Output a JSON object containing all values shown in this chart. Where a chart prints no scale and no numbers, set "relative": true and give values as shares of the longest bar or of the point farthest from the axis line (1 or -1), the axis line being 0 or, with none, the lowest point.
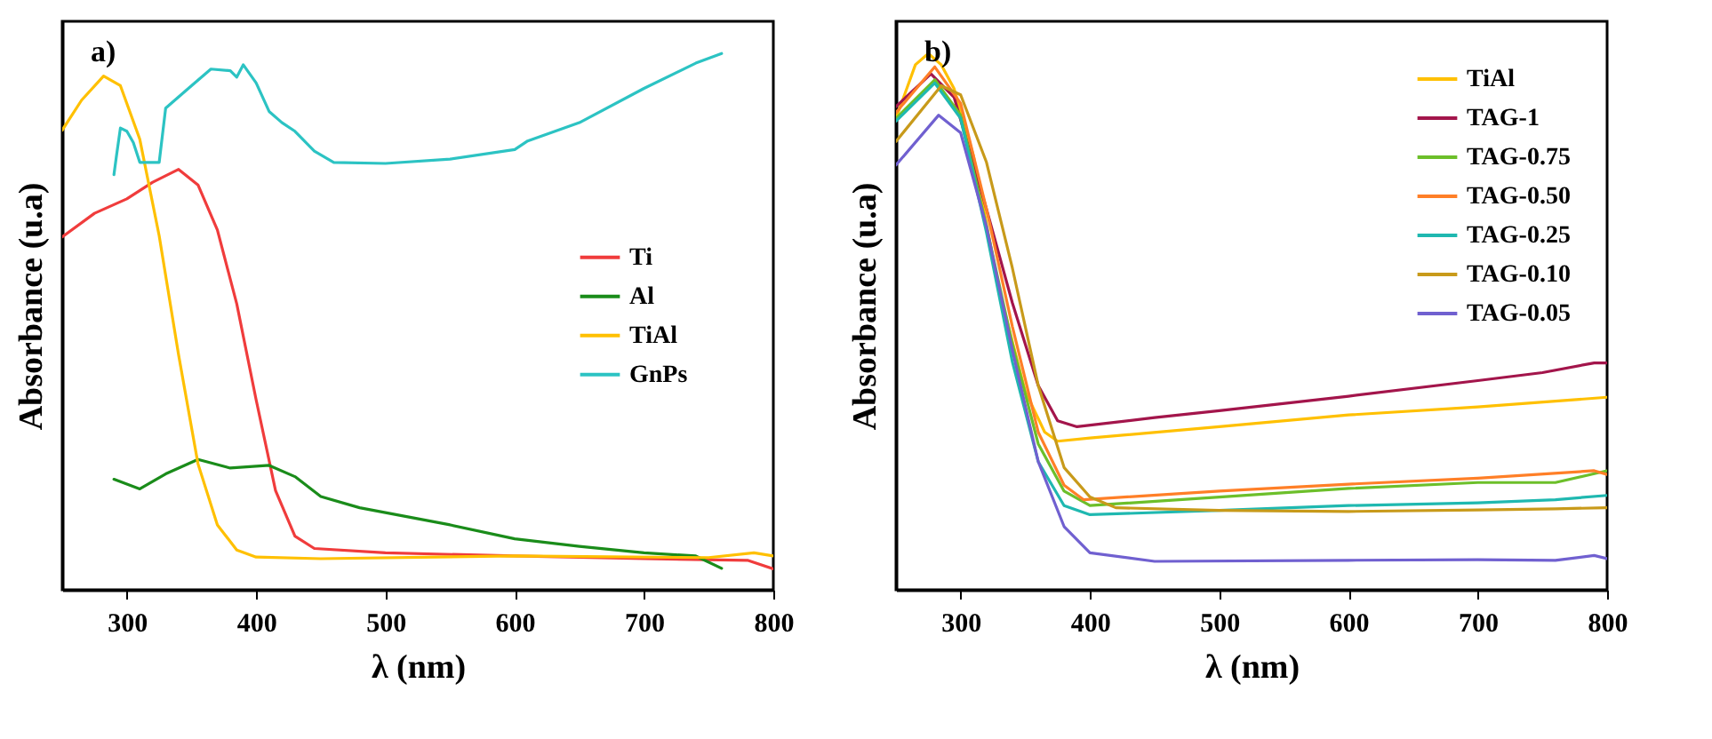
{
  "chart_data": [
    {
      "type": "line",
      "relative": true,
      "xlabel": "λ (nm)",
      "ylabel": "Absorbance (u.a)",
      "annotations": [
        "a)"
      ],
      "xlim": [
        250,
        800
      ],
      "xticks": [
        300,
        400,
        500,
        600,
        700,
        800
      ],
      "legend": "right",
      "grid": false,
      "line_style": "solid",
      "marker": "none",
      "series": [
        {
          "name": "Ti",
          "color": "#f03c3c",
          "x": [
            250,
            275,
            300,
            320,
            340,
            355,
            370,
            385,
            400,
            415,
            430,
            445,
            500,
            600,
            700,
            780,
            800
          ],
          "values": [
            0.658,
            0.702,
            0.729,
            0.76,
            0.784,
            0.755,
            0.671,
            0.533,
            0.354,
            0.185,
            0.1,
            0.077,
            0.069,
            0.063,
            0.058,
            0.055,
            0.039
          ]
        },
        {
          "name": "Al",
          "color": "#1a8c1a",
          "x": [
            290,
            310,
            330,
            355,
            380,
            410,
            430,
            450,
            480,
            550,
            600,
            650,
            700,
            740,
            760
          ],
          "values": [
            0.206,
            0.188,
            0.216,
            0.243,
            0.227,
            0.232,
            0.211,
            0.174,
            0.153,
            0.121,
            0.095,
            0.081,
            0.069,
            0.063,
            0.04
          ]
        },
        {
          "name": "TiAl",
          "color": "#ffc000",
          "x": [
            250,
            265,
            282,
            295,
            310,
            325,
            340,
            355,
            370,
            385,
            400,
            450,
            600,
            750,
            785,
            800
          ],
          "values": [
            0.857,
            0.913,
            0.958,
            0.94,
            0.84,
            0.66,
            0.438,
            0.235,
            0.121,
            0.074,
            0.061,
            0.058,
            0.063,
            0.06,
            0.069,
            0.063
          ]
        },
        {
          "name": "GnPs",
          "color": "#2cc3c3",
          "x": [
            290,
            292,
            295,
            300,
            305,
            310,
            325,
            330,
            350,
            365,
            380,
            385,
            390,
            400,
            410,
            420,
            430,
            445,
            460,
            500,
            550,
            600,
            610,
            650,
            700,
            740,
            760
          ],
          "values": [
            0.774,
            0.81,
            0.861,
            0.855,
            0.834,
            0.797,
            0.797,
            0.898,
            0.94,
            0.971,
            0.968,
            0.956,
            0.979,
            0.945,
            0.892,
            0.871,
            0.855,
            0.818,
            0.797,
            0.795,
            0.803,
            0.821,
            0.837,
            0.871,
            0.935,
            0.982,
            1.0
          ]
        }
      ]
    },
    {
      "type": "line",
      "relative": true,
      "xlabel": "λ (nm)",
      "ylabel": "Absorbance (u.a)",
      "annotations": [
        "b)"
      ],
      "xlim": [
        250,
        800
      ],
      "xticks": [
        300,
        400,
        500,
        600,
        700,
        800
      ],
      "legend": "top right",
      "grid": false,
      "line_style": "solid",
      "marker": "none",
      "series": [
        {
          "name": "TiAl",
          "color": "#ffc000",
          "x": [
            250,
            265,
            275,
            285,
            295,
            310,
            330,
            350,
            365,
            375,
            400,
            500,
            600,
            700,
            800
          ],
          "values": [
            0.879,
            0.979,
            1.0,
            0.979,
            0.934,
            0.808,
            0.556,
            0.37,
            0.294,
            0.277,
            0.283,
            0.304,
            0.326,
            0.341,
            0.359
          ]
        },
        {
          "name": "TAG-1",
          "color": "#a3154b",
          "x": [
            250,
            277,
            295,
            320,
            340,
            360,
            375,
            390,
            450,
            500,
            600,
            700,
            750,
            790,
            800
          ],
          "values": [
            0.901,
            0.962,
            0.918,
            0.71,
            0.535,
            0.381,
            0.315,
            0.304,
            0.321,
            0.334,
            0.361,
            0.39,
            0.405,
            0.423,
            0.423
          ]
        },
        {
          "name": "TAG-0.75",
          "color": "#6cbf2a",
          "x": [
            250,
            280,
            300,
            320,
            340,
            360,
            380,
            400,
            500,
            600,
            700,
            760,
            800
          ],
          "values": [
            0.879,
            0.951,
            0.885,
            0.677,
            0.458,
            0.272,
            0.184,
            0.157,
            0.173,
            0.189,
            0.2,
            0.2,
            0.222
          ]
        },
        {
          "name": "TAG-0.50",
          "color": "#ff7f27",
          "x": [
            250,
            280,
            300,
            320,
            340,
            360,
            380,
            395,
            500,
            600,
            700,
            790,
            800
          ],
          "values": [
            0.89,
            0.975,
            0.907,
            0.71,
            0.491,
            0.294,
            0.195,
            0.168,
            0.184,
            0.197,
            0.208,
            0.222,
            0.215
          ]
        },
        {
          "name": "TAG-0.25",
          "color": "#1fb8b0",
          "x": [
            250,
            280,
            300,
            320,
            340,
            360,
            380,
            400,
            500,
            600,
            700,
            760,
            800
          ],
          "values": [
            0.874,
            0.945,
            0.879,
            0.666,
            0.425,
            0.239,
            0.157,
            0.14,
            0.148,
            0.157,
            0.162,
            0.168,
            0.176
          ]
        },
        {
          "name": "TAG-0.10",
          "color": "#c89a1a",
          "x": [
            250,
            285,
            300,
            320,
            340,
            360,
            380,
            400,
            420,
            500,
            600,
            700,
            760,
            800
          ],
          "values": [
            0.836,
            0.94,
            0.923,
            0.797,
            0.6,
            0.381,
            0.228,
            0.173,
            0.153,
            0.148,
            0.146,
            0.149,
            0.151,
            0.153
          ]
        },
        {
          "name": "TAG-0.05",
          "color": "#7060d0",
          "x": [
            250,
            283,
            300,
            320,
            340,
            360,
            380,
            400,
            450,
            600,
            700,
            760,
            790,
            800
          ],
          "values": [
            0.792,
            0.885,
            0.852,
            0.677,
            0.447,
            0.239,
            0.118,
            0.069,
            0.053,
            0.055,
            0.056,
            0.055,
            0.064,
            0.058
          ]
        }
      ]
    }
  ]
}
